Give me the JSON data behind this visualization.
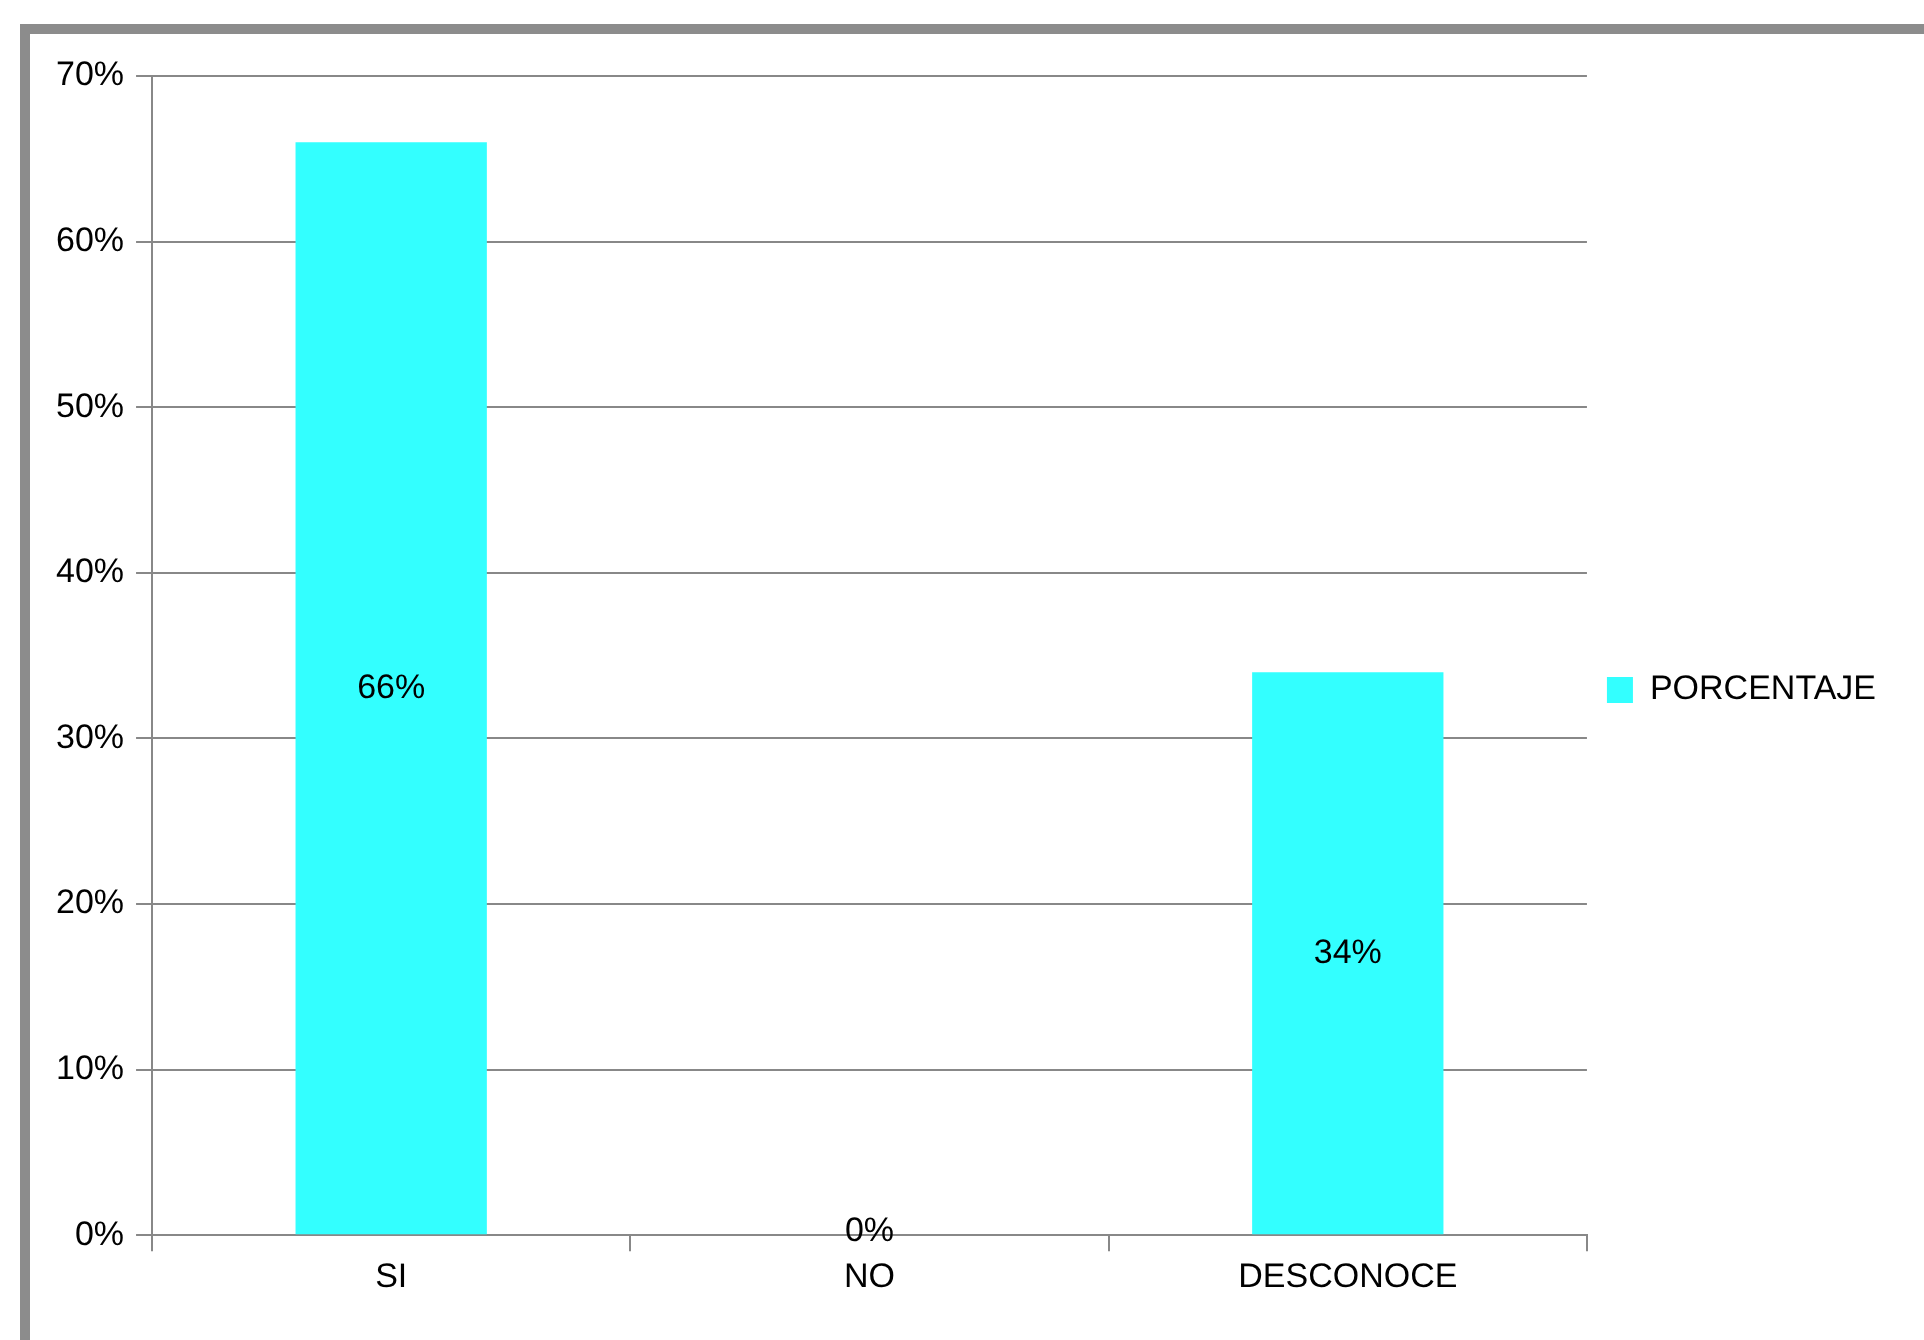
{
  "chart_data": {
    "type": "bar",
    "categories": [
      "SI",
      "NO",
      "DESCONOCE"
    ],
    "series": [
      {
        "name": "PORCENTAJE",
        "color": "#33ffff",
        "values": [
          66,
          0,
          34
        ],
        "value_labels": [
          "66%",
          "0%",
          "34%"
        ]
      }
    ],
    "ylim": [
      0,
      70
    ],
    "yticks": [
      {
        "value": 0,
        "label": "0%"
      },
      {
        "value": 10,
        "label": "10%"
      },
      {
        "value": 20,
        "label": "20%"
      },
      {
        "value": 30,
        "label": "30%"
      },
      {
        "value": 40,
        "label": "40%"
      },
      {
        "value": 50,
        "label": "50%"
      },
      {
        "value": 60,
        "label": "60%"
      },
      {
        "value": 70,
        "label": "70%"
      }
    ],
    "grid": "y",
    "legend": "right"
  }
}
